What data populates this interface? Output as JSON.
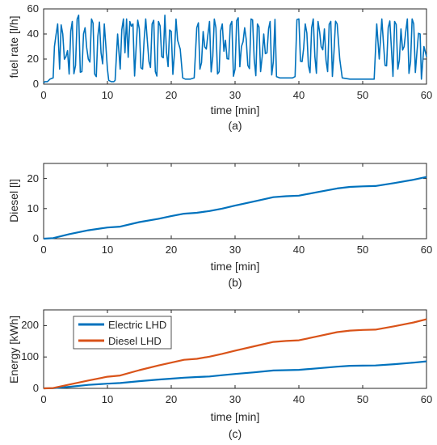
{
  "colors": {
    "blue": "#0072BD",
    "orange": "#D95319",
    "axis": "#262626"
  },
  "chart_data": [
    {
      "type": "line",
      "ylabel": "fuel rate [l/h]",
      "xlabel": "time [min]",
      "caption": "(a)",
      "xlim": [
        0,
        60
      ],
      "ylim": [
        0,
        60
      ],
      "xticks": [
        "0",
        "10",
        "20",
        "30",
        "40",
        "50",
        "60"
      ],
      "yticks": [
        "0",
        "20",
        "40",
        "60"
      ],
      "idle_segments": [
        [
          0,
          1.5,
          2
        ],
        [
          10.2,
          11.2,
          2
        ],
        [
          21.8,
          23.6,
          4
        ],
        [
          36.5,
          39.4,
          5
        ],
        [
          46.8,
          51.8,
          4
        ],
        [
          59.2,
          60,
          4
        ]
      ],
      "series": [
        {
          "x": [
            0,
            0.2,
            0.6,
            1.0,
            1.5,
            1.7,
            2.2,
            2.5,
            3.0,
            3.5,
            4.0,
            4.5,
            5.0,
            5.5,
            6.0,
            6.5,
            7.0,
            7.5,
            8.0,
            8.5,
            9.0,
            9.5,
            10.0,
            10.2,
            10.6,
            11.0,
            11.2,
            11.6,
            12.0,
            12.5,
            13.0,
            13.5,
            14.0,
            14.5,
            15.0,
            15.5,
            16.0,
            16.5,
            17.0,
            17.5,
            18.0,
            18.5,
            19.0,
            19.5,
            20.0,
            20.5,
            21.0,
            21.4,
            21.8,
            22.2,
            23.0,
            23.6,
            24.0,
            24.5,
            25.0,
            25.5,
            26.0,
            26.5,
            27.0,
            27.5,
            28.0,
            28.5,
            29.0,
            29.5,
            30.0,
            30.5,
            31.0,
            31.5,
            32.0,
            32.5,
            33.0,
            33.5,
            34.0,
            34.5,
            35.0,
            35.5,
            36.0,
            36.5,
            37.0,
            38.0,
            39.0,
            39.4,
            40.0,
            40.5,
            41.0,
            41.5,
            42.0,
            42.5,
            43.0,
            43.5,
            44.0,
            44.5,
            45.0,
            45.5,
            46.0,
            46.4,
            46.8,
            48.0,
            50.0,
            51.8,
            52.2,
            52.6,
            53.0,
            53.5,
            54.0,
            54.5,
            55.0,
            55.5,
            56.0,
            56.5,
            57.0,
            57.5,
            58.0,
            58.5,
            59.0,
            59.2,
            59.6,
            60.0
          ],
          "y": [
            1,
            2,
            2,
            4,
            5,
            30,
            48,
            12,
            40,
            22,
            8,
            50,
            15,
            55,
            10,
            45,
            20,
            52,
            8,
            38,
            25,
            48,
            12,
            3,
            2,
            2,
            3,
            40,
            12,
            52,
            52,
            50,
            48,
            30,
            44,
            12,
            52,
            18,
            48,
            10,
            50,
            22,
            55,
            14,
            42,
            25,
            35,
            28,
            5,
            4,
            4,
            5,
            45,
            12,
            42,
            28,
            50,
            22,
            45,
            10,
            48,
            35,
            20,
            50,
            12,
            53,
            30,
            45,
            15,
            52,
            20,
            48,
            10,
            40,
            25,
            50,
            18,
            6,
            5,
            5,
            5,
            6,
            52,
            18,
            48,
            15,
            45,
            22,
            50,
            30,
            44,
            10,
            50,
            25,
            48,
            20,
            5,
            4,
            4,
            4,
            48,
            20,
            52,
            15,
            45,
            28,
            50,
            12,
            44,
            30,
            52,
            18,
            48,
            25,
            40,
            4,
            30,
            22
          ]
        }
      ]
    },
    {
      "type": "line",
      "ylabel": "Diesel [l]",
      "xlabel": "time [min]",
      "caption": "(b)",
      "xlim": [
        0,
        60
      ],
      "ylim": [
        0,
        25
      ],
      "xticks": [
        "0",
        "10",
        "20",
        "30",
        "40",
        "50",
        "60"
      ],
      "yticks": [
        "0",
        "10",
        "20"
      ],
      "series": [
        {
          "x": [
            0,
            1.5,
            4,
            7,
            10,
            12,
            15,
            18,
            20,
            22,
            24,
            26,
            28,
            30,
            33,
            36,
            38,
            40,
            43,
            46,
            48,
            50,
            52,
            55,
            58,
            60
          ],
          "y": [
            0,
            0.2,
            1.5,
            2.8,
            3.7,
            4.0,
            5.5,
            6.6,
            7.5,
            8.3,
            8.6,
            9.2,
            10.0,
            11.0,
            12.4,
            13.8,
            14.1,
            14.3,
            15.5,
            16.7,
            17.2,
            17.4,
            17.5,
            18.5,
            19.6,
            20.5
          ]
        }
      ]
    },
    {
      "type": "line",
      "ylabel": "Energy [kWh]",
      "xlabel": "time [min]",
      "caption": "(c)",
      "xlim": [
        0,
        60
      ],
      "ylim": [
        0,
        250
      ],
      "xticks": [
        "0",
        "10",
        "20",
        "30",
        "40",
        "50",
        "60"
      ],
      "yticks": [
        "0",
        "100",
        "200"
      ],
      "legend_position": "top-left",
      "series": [
        {
          "name": "Electric LHD",
          "color_key": "blue",
          "x": [
            0,
            1.5,
            4,
            7,
            10,
            12,
            15,
            18,
            20,
            22,
            24,
            26,
            28,
            30,
            33,
            36,
            38,
            40,
            43,
            46,
            48,
            50,
            52,
            55,
            58,
            60
          ],
          "y": [
            0,
            0.5,
            5,
            11,
            15,
            17,
            23,
            28,
            31,
            34,
            36,
            38,
            42,
            46,
            51,
            57,
            58,
            59,
            64,
            69,
            72,
            72.5,
            73,
            77,
            82,
            86
          ]
        },
        {
          "name": "Diesel LHD",
          "color_key": "orange",
          "x": [
            0,
            1.5,
            4,
            7,
            10,
            12,
            15,
            18,
            20,
            22,
            24,
            26,
            28,
            30,
            33,
            36,
            38,
            40,
            43,
            46,
            48,
            50,
            52,
            55,
            58,
            60
          ],
          "y": [
            0,
            1,
            12,
            25,
            37,
            41,
            58,
            73,
            82,
            91,
            94,
            101,
            110,
            120,
            134,
            148,
            151,
            153,
            166,
            179,
            184,
            186,
            187,
            198,
            210,
            220
          ]
        }
      ]
    }
  ]
}
